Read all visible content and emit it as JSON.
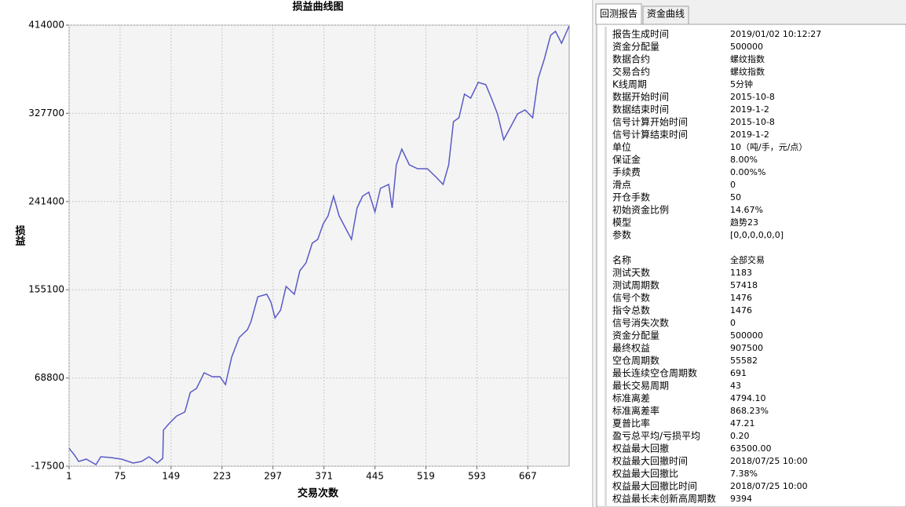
{
  "chart_data": {
    "type": "line",
    "title": "损益曲线图",
    "y_label": "损益",
    "x_label": "交易次数",
    "x": [
      1,
      9,
      15,
      26,
      40,
      47,
      60,
      77,
      94,
      106,
      117,
      129,
      137,
      138,
      146,
      157,
      169,
      177,
      186,
      197,
      209,
      220,
      228,
      237,
      248,
      260,
      265,
      275,
      288,
      294,
      300,
      308,
      316,
      328,
      336,
      345,
      354,
      362,
      370,
      377,
      385,
      393,
      402,
      411,
      419,
      427,
      436,
      445,
      453,
      465,
      470,
      476,
      484,
      495,
      507,
      521,
      533,
      544,
      552,
      559,
      567,
      575,
      584,
      595,
      606,
      614,
      623,
      632,
      643,
      652,
      663,
      674,
      682,
      691,
      700,
      707,
      716,
      727
    ],
    "values": [
      0,
      -6750,
      -12900,
      -10600,
      -16000,
      -8300,
      -9000,
      -10600,
      -14400,
      -12900,
      -8300,
      -14400,
      -9800,
      17800,
      24000,
      31600,
      35500,
      54700,
      58500,
      73900,
      70000,
      70000,
      62300,
      89200,
      108400,
      116100,
      123800,
      148300,
      150700,
      143000,
      127600,
      135300,
      158300,
      150700,
      173700,
      181400,
      200600,
      204400,
      219700,
      227400,
      246600,
      227400,
      215900,
      204400,
      235100,
      246600,
      250500,
      231300,
      254300,
      258100,
      235100,
      277300,
      292700,
      277300,
      273500,
      273500,
      265800,
      258100,
      277300,
      319600,
      323400,
      346400,
      342600,
      358000,
      355700,
      342600,
      327200,
      301900,
      315700,
      327200,
      331000,
      323400,
      361800,
      381000,
      404000,
      407900,
      396300,
      413200
    ],
    "color": "#5a5ac8",
    "xlim": [
      1,
      727
    ],
    "xticks": [
      1,
      75,
      149,
      223,
      297,
      371,
      445,
      519,
      593,
      667
    ],
    "ylim": [
      -17500,
      414000
    ],
    "yticks": [
      -17500,
      68800,
      155100,
      241400,
      327700,
      414000
    ],
    "grid": true
  },
  "report": {
    "tabs": [
      "回测报告",
      "资金曲线"
    ],
    "sections": [
      [
        [
          "报告生成时间",
          "2019/01/02 10:12:27"
        ],
        [
          "资金分配量",
          "500000"
        ],
        [
          "数据合约",
          "螺纹指数"
        ],
        [
          "交易合约",
          "螺纹指数"
        ],
        [
          "K线周期",
          "5分钟"
        ],
        [
          "数据开始时间",
          "2015-10-8"
        ],
        [
          "数据结束时间",
          "2019-1-2"
        ],
        [
          "信号计算开始时间",
          "2015-10-8"
        ],
        [
          "信号计算结束时间",
          "2019-1-2"
        ],
        [
          "单位",
          "10（吨/手，元/点）"
        ],
        [
          "保证金",
          "8.00%"
        ],
        [
          "手续费",
          "0.00%%"
        ],
        [
          "滑点",
          "0"
        ],
        [
          "开仓手数",
          "50"
        ],
        [
          "初始资金比例",
          "14.67%"
        ],
        [
          "模型",
          "趋势23"
        ],
        [
          "参数",
          "[0,0,0,0,0,0]"
        ]
      ],
      [
        [
          "名称",
          "全部交易"
        ],
        [
          "测试天数",
          "1183"
        ],
        [
          "测试周期数",
          "57418"
        ],
        [
          "信号个数",
          "1476"
        ],
        [
          "指令总数",
          "1476"
        ],
        [
          "信号消失次数",
          "0"
        ],
        [
          "资金分配量",
          "500000"
        ],
        [
          "最终权益",
          "907500"
        ],
        [
          "空仓周期数",
          "55582"
        ],
        [
          "最长连续空仓周期数",
          "691"
        ],
        [
          "最长交易周期",
          "43"
        ],
        [
          "标准离差",
          "4794.10"
        ],
        [
          "标准离差率",
          "868.23%"
        ],
        [
          "夏普比率",
          "47.21"
        ],
        [
          "盈亏总平均/亏损平均",
          "0.20"
        ],
        [
          "权益最大回撤",
          "63500.00"
        ],
        [
          "权益最大回撤时间",
          "2018/07/25 10:00"
        ],
        [
          "权益最大回撤比",
          "7.38%"
        ],
        [
          "权益最大回撤比时间",
          "2018/07/25 10:00"
        ],
        [
          "权益最长未创新高周期数",
          "9394"
        ]
      ]
    ]
  }
}
